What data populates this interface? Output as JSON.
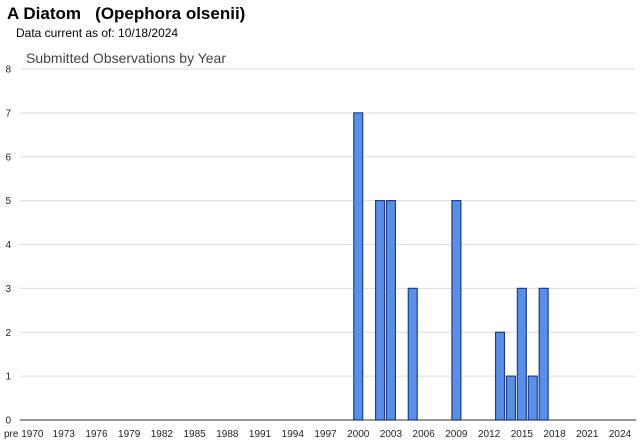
{
  "header": {
    "title": "A Diatom   (Opephora olsenii)",
    "data_current": "Data current as of: 10/18/2024"
  },
  "colors": {
    "bar_fill": "#5b8fe6",
    "bar_stroke": "#1d3f8f",
    "grid": "#dcdcdc"
  },
  "chart_data": {
    "type": "bar",
    "title": "Submitted Observations by Year",
    "xlabel": "",
    "ylabel": "",
    "ylim": [
      0,
      8
    ],
    "yticks": [
      0,
      1,
      2,
      3,
      4,
      5,
      6,
      7,
      8
    ],
    "grid": true,
    "legend": "none",
    "x_tick_labels": [
      "pre 1970",
      "1973",
      "1976",
      "1979",
      "1982",
      "1985",
      "1988",
      "1991",
      "1994",
      "1997",
      "2000",
      "2003",
      "2006",
      "2009",
      "2012",
      "2015",
      "2018",
      "2021",
      "2024"
    ],
    "categories": [
      "2000",
      "2002",
      "2003",
      "2005",
      "2009",
      "2013",
      "2014",
      "2015",
      "2016",
      "2017"
    ],
    "values": [
      7,
      5,
      5,
      3,
      5,
      2,
      1,
      3,
      1,
      3
    ]
  }
}
